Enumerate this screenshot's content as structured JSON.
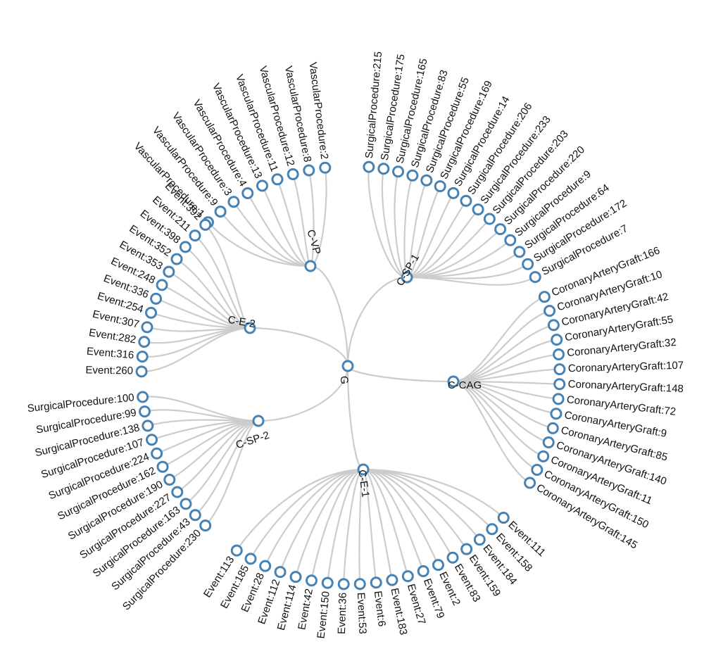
{
  "root": "G",
  "colors": {
    "link": "#cccccc",
    "node_stroke": "#4682b4",
    "node_fill": "#ffffff",
    "text": "#111111",
    "muted_text": "#666666"
  },
  "clusters": [
    {
      "name": "C-VP",
      "leaves": [
        "VascularProcedure:2",
        "VascularProcedure:8",
        "VascularProcedure:12",
        "VascularProcedure:11",
        "VascularProcedure:13",
        "VascularProcedure:4",
        "VascularProcedure:3",
        "VascularProcedure:9",
        "VascularProcedure:1"
      ]
    },
    {
      "name": "C-SP-1",
      "leaves": [
        "SurgicalProcedure:215",
        "SurgicalProcedure:175",
        "SurgicalProcedure:165",
        "SurgicalProcedure:83",
        "SurgicalProcedure:55",
        "SurgicalProcedure:169",
        "SurgicalProcedure:14",
        "SurgicalProcedure:206",
        "SurgicalProcedure:233",
        "SurgicalProcedure:203",
        "SurgicalProcedure:220",
        "SurgicalProcedure:9",
        "SurgicalProcedure:64",
        "SurgicalProcedure:172",
        "SurgicalProcedure:7"
      ]
    },
    {
      "name": "C-CAG",
      "leaves": [
        "CoronaryArteryGraft:166",
        "CoronaryArteryGraft:10",
        "CoronaryArteryGraft:42",
        "CoronaryArteryGraft:55",
        "CoronaryArteryGraft:32",
        "CoronaryArteryGraft:107",
        "CoronaryArteryGraft:148",
        "CoronaryArteryGraft:72",
        "CoronaryArteryGraft:9",
        "CoronaryArteryGraft:85",
        "CoronaryArteryGraft:140",
        "CoronaryArteryGraft:11",
        "CoronaryArteryGraft:150",
        "CoronaryArteryGraft:145"
      ]
    },
    {
      "name": "C-E-1",
      "leaves": [
        "Event:111",
        "Event:158",
        "Event:184",
        "Event:159",
        "Event:83",
        "Event:2",
        "Event:79",
        "Event:27",
        "Event:183",
        "Event:6",
        "Event:53",
        "Event:36",
        "Event:150",
        "Event:42",
        "Event:114",
        "Event:112",
        "Event:28",
        "Event:185",
        "Event:113"
      ],
      "muted": [
        "Event:36"
      ]
    },
    {
      "name": "C-SP-2",
      "leaves": [
        "SurgicalProcedure:230",
        "SurgicalProcedure:43",
        "SurgicalProcedure:163",
        "SurgicalProcedure:227",
        "SurgicalProcedure:190",
        "SurgicalProcedure:162",
        "SurgicalProcedure:224",
        "SurgicalProcedure:107",
        "SurgicalProcedure:138",
        "SurgicalProcedure:99",
        "SurgicalProcedure:100"
      ]
    },
    {
      "name": "C-E-2",
      "leaves": [
        "Event:260",
        "Event:316",
        "Event:282",
        "Event:307",
        "Event:254",
        "Event:336",
        "Event:248",
        "Event:353",
        "Event:352",
        "Event:398",
        "Event:211",
        "Event:392"
      ]
    }
  ]
}
